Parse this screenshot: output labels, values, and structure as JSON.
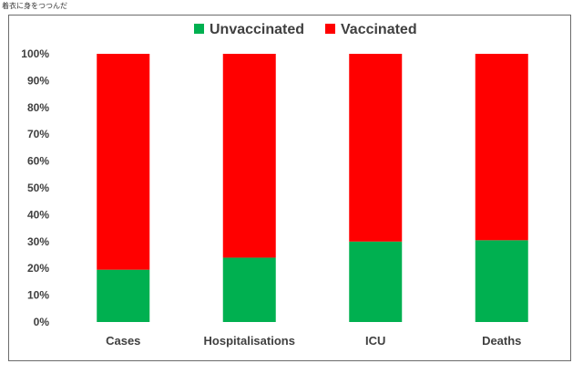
{
  "page": {
    "caption": "着衣に身をつつんだ"
  },
  "chart_data": {
    "type": "bar",
    "stacked": true,
    "percent": true,
    "categories": [
      "Cases",
      "Hospitalisations",
      "ICU",
      "Deaths"
    ],
    "series": [
      {
        "name": "Unvaccinated",
        "color": "#00b050",
        "values": [
          19.5,
          24,
          30,
          30.5
        ]
      },
      {
        "name": "Vaccinated",
        "color": "#ff0000",
        "values": [
          80.5,
          76,
          70,
          69.5
        ]
      }
    ],
    "ylim": [
      0,
      100
    ],
    "yticks": [
      "0%",
      "10%",
      "20%",
      "30%",
      "40%",
      "50%",
      "60%",
      "70%",
      "80%",
      "90%",
      "100%"
    ],
    "legend_position": "top-center",
    "grid": false
  }
}
